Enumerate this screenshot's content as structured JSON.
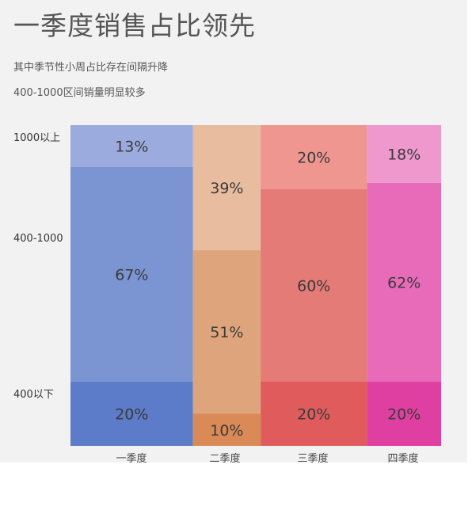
{
  "header": {
    "title": "一季度销售占比领先",
    "subtitle_1": "其中季节性小周占比存在间隔升降",
    "subtitle_2": "400-1000区间销量明显较多"
  },
  "chart_data": {
    "type": "bar",
    "stacked": true,
    "normalized": true,
    "variable_width": true,
    "title": "一季度销售占比领先",
    "categories": [
      "一季度",
      "二季度",
      "三季度",
      "四季度"
    ],
    "category_share": [
      0.38,
      0.21,
      0.33,
      0.23
    ],
    "segments": [
      {
        "name": "400以下",
        "values": [
          20,
          10,
          20,
          20
        ]
      },
      {
        "name": "400-1000",
        "values": [
          67,
          51,
          60,
          62
        ]
      },
      {
        "name": "1000以上",
        "values": [
          13,
          39,
          20,
          18
        ]
      }
    ],
    "value_unit": "%",
    "colors": [
      [
        "#5c7bc8",
        "#7b94d2",
        "#9babdd"
      ],
      [
        "#d98a57",
        "#dea57c",
        "#e8bc9e"
      ],
      [
        "#e05c5c",
        "#e57b77",
        "#ef9691"
      ],
      [
        "#e03fa2",
        "#e86bba",
        "#ef98cd"
      ]
    ]
  }
}
